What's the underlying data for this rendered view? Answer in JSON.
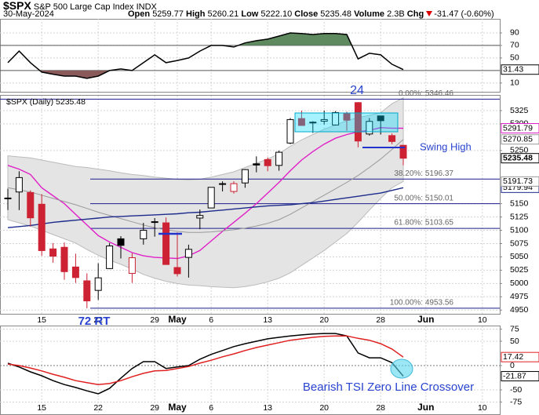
{
  "header": {
    "symbol": "$SPX",
    "name": "S&P 500 Large Cap Index",
    "exchange": "INDX",
    "date": "30-May-2024",
    "fields": [
      {
        "label": "Open",
        "value": "5259.77"
      },
      {
        "label": "High",
        "value": "5260.21"
      },
      {
        "label": "Low",
        "value": "5222.10"
      },
      {
        "label": "Close",
        "value": "5235.48"
      },
      {
        "label": "Volume",
        "value": "2.3B"
      },
      {
        "label": "Chg",
        "value": "-31.47 (-0.60%)"
      }
    ]
  },
  "chart_data": [
    {
      "type": "line",
      "grid": true,
      "series": [
        {
          "color": "#000000",
          "values": [
            42.5,
            61,
            42.5,
            27.5,
            24,
            21,
            21,
            17.5,
            21,
            30,
            32.5,
            30,
            42.5,
            55,
            42.5,
            46,
            50,
            61,
            70,
            70,
            67.5,
            74,
            77.5,
            80,
            85,
            90,
            89,
            87.5,
            89,
            89,
            87.5,
            48.5,
            57.5,
            55,
            40,
            31.43,
            null,
            null,
            null,
            null,
            null,
            null,
            null,
            null
          ]
        }
      ],
      "ylim": [
        -4,
        112.5
      ],
      "yticks": [
        10,
        50,
        70,
        90
      ],
      "levels": [
        70,
        30
      ],
      "level_color": "#555555",
      "fill_above_color": "#5f8a5f",
      "fill_below_color": "#8a5a5a"
    },
    {
      "type": "candlestick",
      "title": "$SPX (Daily)",
      "grid": true,
      "categories": [
        null,
        null,
        null,
        "15",
        null,
        null,
        null,
        null,
        "22",
        null,
        null,
        null,
        null,
        "29",
        null,
        "May",
        null,
        null,
        "6",
        null,
        null,
        null,
        null,
        "13",
        null,
        null,
        null,
        null,
        "20",
        null,
        null,
        null,
        null,
        "28",
        null,
        null,
        null,
        "Jun",
        null,
        null,
        null,
        null,
        "10",
        null
      ],
      "open": [
        5160,
        5172,
        5171,
        5149,
        5065,
        5068,
        5031,
        5005,
        4987,
        5028,
        5084,
        5019,
        5084,
        5115,
        5114,
        5030,
        5049,
        5123,
        5142,
        5187,
        5173,
        5189,
        5225,
        5233,
        5222,
        5264,
        5310,
        5303,
        5305,
        5298,
        5319,
        5340,
        5281,
        5315,
        5278,
        5259.77,
        null,
        null,
        null,
        null,
        null,
        null,
        null,
        null
      ],
      "high": [
        5178,
        5211,
        5175,
        5168,
        5076,
        5077,
        5056,
        5019,
        5038,
        5076,
        5089,
        5057,
        5114,
        5123,
        5124,
        5096,
        5073,
        5139,
        5181,
        5192,
        5192,
        5215,
        5239,
        5237,
        5250,
        5311,
        5325,
        5305,
        5325,
        5324,
        5323,
        5341,
        5311,
        5315,
        5282,
        5260.21,
        null,
        null,
        null,
        null,
        null,
        null,
        null,
        null
      ],
      "low": [
        5138,
        5138,
        5107,
        5052,
        5039,
        5007,
        5001,
        4953.56,
        4969,
        5027,
        5047,
        5001,
        5073,
        5088,
        5035,
        5013,
        5011,
        5102,
        5142,
        5173,
        5169,
        5180,
        5209,
        5211,
        5212,
        5262,
        5297,
        5283,
        5299,
        5297,
        5287,
        5256,
        5278,
        5280,
        5262,
        5222.1,
        null,
        null,
        null,
        null,
        null,
        null,
        null,
        null
      ],
      "close": [
        5160.64,
        5199.06,
        5123.41,
        5061.82,
        5051.41,
        5022.21,
        5011.12,
        4967.23,
        5010.6,
        5070.55,
        5071.63,
        5048.42,
        5099.96,
        5116.17,
        5035.69,
        5018.39,
        5064.2,
        5127.79,
        5180.74,
        5187.7,
        5187.67,
        5214.08,
        5222.68,
        5221.42,
        5246.68,
        5308.15,
        5297.1,
        5303.27,
        5308.13,
        5321.41,
        5307.01,
        5267.84,
        5304.72,
        5306.04,
        5266.95,
        5235.48,
        null,
        null,
        null,
        null,
        null,
        null,
        null,
        null
      ],
      "up_color": "#000000",
      "down_color": "#cc2233",
      "band": {
        "color": "#e4e4e4",
        "upper": [
          5240,
          5238,
          5236,
          5232,
          5228,
          5224,
          5220,
          5218,
          5215,
          5212,
          5208,
          5205,
          5203,
          5200,
          5198,
          5196,
          5195,
          5196,
          5200,
          5205,
          5210,
          5218,
          5226,
          5234,
          5244,
          5258,
          5270,
          5280,
          5290,
          5298,
          5306,
          5312,
          5316,
          5321,
          5338,
          5349,
          null,
          null,
          null,
          null,
          null,
          null,
          null,
          null
        ],
        "lower": [
          5120,
          5114,
          5108,
          5100,
          5092,
          5084,
          5076,
          5064,
          5053,
          5044,
          5036,
          5027,
          5017,
          5010,
          5004,
          5000,
          4997,
          4996,
          4994,
          4993,
          4992,
          4994,
          4998,
          5003,
          5010,
          5020,
          5034,
          5048,
          5062,
          5078,
          5094,
          5115,
          5138,
          5160,
          5180,
          5191.73,
          null,
          null,
          null,
          null,
          null,
          null,
          null,
          null
        ]
      },
      "overlays": [
        {
          "color": "#e020c8",
          "values": [
            5222,
            5215,
            5205,
            5180,
            5165,
            5150,
            5130,
            5110,
            5090,
            5078,
            5068,
            5058,
            5052,
            5049,
            5048,
            5047,
            5052,
            5062,
            5080,
            5098,
            5115,
            5132,
            5150,
            5170,
            5190,
            5212,
            5232,
            5248,
            5262,
            5273,
            5280,
            5285,
            5288,
            5293,
            5292,
            5291.79,
            null,
            null,
            null,
            null,
            null,
            null,
            null,
            null
          ]
        },
        {
          "color": "#999999",
          "values": [
            5180,
            5176,
            5172,
            5166,
            5160,
            5154,
            5148,
            5141,
            5134,
            5128,
            5122,
            5116,
            5110,
            5105,
            5101,
            5098,
            5096,
            5096,
            5097,
            5099,
            5101,
            5104,
            5108,
            5113,
            5120,
            5130,
            5142,
            5154,
            5166,
            5178,
            5190,
            5203,
            5218,
            5234,
            5252,
            5270.85,
            null,
            null,
            null,
            null,
            null,
            null,
            null,
            null
          ]
        },
        {
          "color": "#1c2a8c",
          "values": [
            5105,
            5107,
            5109,
            5112,
            5115,
            5117,
            5119,
            5121,
            5123,
            5125,
            5126,
            5127,
            5128,
            5129,
            5130,
            5131,
            5133,
            5134,
            5136,
            5138,
            5140,
            5142,
            5144,
            5146,
            5147,
            5148,
            5150,
            5152,
            5155,
            5158,
            5161,
            5164,
            5167,
            5170,
            5175,
            5179.94,
            null,
            null,
            null,
            null,
            null,
            null,
            null,
            null
          ]
        }
      ],
      "fib_color": "#1c1c8c",
      "fib_levels": [
        {
          "value": 5346.46,
          "label": "0.00%: 5346.46"
        },
        {
          "value": 5196.37,
          "label": "38.20%: 5196.37"
        },
        {
          "value": 5150.01,
          "label": "50.00%: 5150.01"
        },
        {
          "value": 5103.65,
          "label": "61.80%: 5103.65"
        },
        {
          "value": 4953.56,
          "label": "100.00%: 4953.56"
        }
      ],
      "ylim": [
        4943,
        5353
      ],
      "yticks": [
        4950,
        4975,
        5000,
        5025,
        5050,
        5075,
        5100,
        5125,
        5150,
        5250,
        5300,
        5325
      ],
      "annotations": [
        "24",
        "72 RT",
        "Swing High"
      ]
    },
    {
      "type": "line",
      "grid": true,
      "categories": [
        null,
        null,
        null,
        "15",
        null,
        null,
        null,
        null,
        "22",
        null,
        null,
        null,
        null,
        "29",
        null,
        "May",
        null,
        null,
        "6",
        null,
        null,
        null,
        null,
        "13",
        null,
        null,
        null,
        null,
        "20",
        null,
        null,
        null,
        null,
        "28",
        null,
        null,
        null,
        "Jun",
        null,
        null,
        null,
        null,
        "10",
        null
      ],
      "series": [
        {
          "color": "#000000",
          "values": [
            4.8,
            -3,
            -13,
            -21,
            -31,
            -39,
            -45,
            -52,
            -58,
            -47,
            -26,
            -6,
            8,
            8,
            -6,
            -3,
            0,
            13,
            23,
            31,
            39,
            45,
            50,
            55,
            58,
            61,
            63,
            65,
            66,
            66,
            61,
            26,
            16,
            16,
            6,
            -21.87,
            null,
            null,
            null,
            null,
            null,
            null,
            null,
            null
          ]
        },
        {
          "color": "#e02020",
          "values": [
            3,
            0,
            -5,
            -11,
            -18,
            -24,
            -31,
            -35,
            -39,
            -37,
            -31,
            -23,
            -16,
            -11,
            -10,
            -6,
            -2,
            5,
            11,
            18,
            24,
            31,
            37,
            42,
            47,
            52,
            55,
            58,
            60,
            61,
            61,
            56,
            52,
            45,
            34,
            17.42,
            null,
            null,
            null,
            null,
            null,
            null,
            null,
            null
          ]
        }
      ],
      "ylim": [
        -100,
        80.6
      ],
      "yticks": [
        -75,
        -50,
        0,
        50,
        75
      ],
      "levels": [
        0
      ],
      "level_color": "#777777",
      "annotation": "Bearish TSI Zero Line Crossover"
    }
  ]
}
